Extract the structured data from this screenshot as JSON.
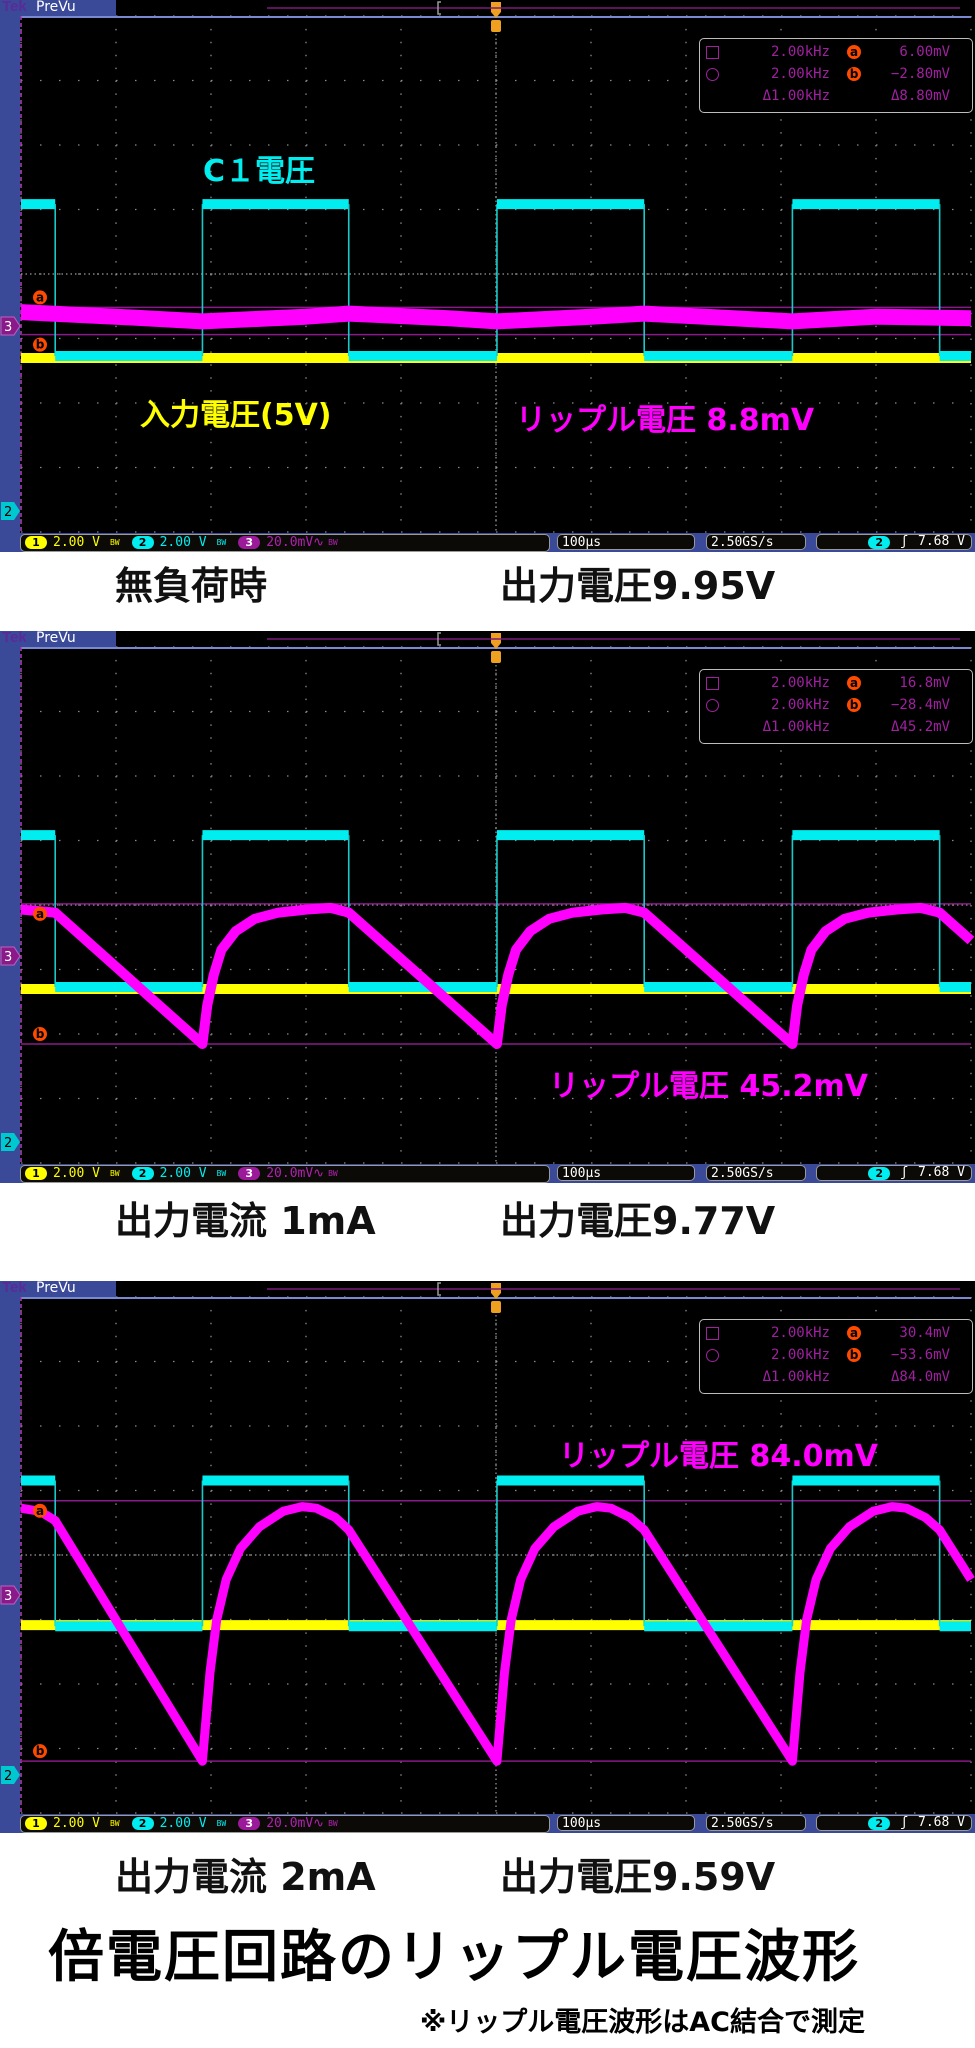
{
  "panels": [
    {
      "tek": "Tek",
      "prevu": "PreVu",
      "measure": {
        "f_a": "2.00kHz",
        "f_b": "2.00kHz",
        "df": "Δ1.00kHz",
        "v_a": "6.00mV",
        "v_b": "−2.80mV",
        "dv": "Δ8.80mV",
        "a": "a",
        "b": "b"
      },
      "status": {
        "ch1_num": "1",
        "ch1": "2.00 V",
        "ch2_num": "2",
        "ch2": "2.00 V",
        "ch3_num": "3",
        "ch3": "20.0mV∿",
        "bw": "BW",
        "timebase": "100µs",
        "sample_rate": "2.50GS/s",
        "trig_ch": "2",
        "trig_slope": "ʃ",
        "trig_level": "7.68 V"
      },
      "labels": {
        "c1": "C１電圧",
        "input": "入力電圧(5V)",
        "ripple": "リップル電圧 8.8mV"
      },
      "caption_left": "無負荷時",
      "caption_right": "出力電圧9.95V"
    },
    {
      "tek": "Tek",
      "prevu": "PreVu",
      "measure": {
        "f_a": "2.00kHz",
        "f_b": "2.00kHz",
        "df": "Δ1.00kHz",
        "v_a": "16.8mV",
        "v_b": "−28.4mV",
        "dv": "Δ45.2mV",
        "a": "a",
        "b": "b"
      },
      "status": {
        "ch1_num": "1",
        "ch1": "2.00 V",
        "ch2_num": "2",
        "ch2": "2.00 V",
        "ch3_num": "3",
        "ch3": "20.0mV∿",
        "bw": "BW",
        "timebase": "100µs",
        "sample_rate": "2.50GS/s",
        "trig_ch": "2",
        "trig_slope": "ʃ",
        "trig_level": "7.68 V"
      },
      "labels": {
        "ripple": "リップル電圧 45.2mV"
      },
      "caption_left": "出力電流 1mA",
      "caption_right": "出力電圧9.77V"
    },
    {
      "tek": "Tek",
      "prevu": "PreVu",
      "measure": {
        "f_a": "2.00kHz",
        "f_b": "2.00kHz",
        "df": "Δ1.00kHz",
        "v_a": "30.4mV",
        "v_b": "−53.6mV",
        "dv": "Δ84.0mV",
        "a": "a",
        "b": "b"
      },
      "status": {
        "ch1_num": "1",
        "ch1": "2.00 V",
        "ch2_num": "2",
        "ch2": "2.00 V",
        "ch3_num": "3",
        "ch3": "20.0mV∿",
        "bw": "BW",
        "timebase": "100µs",
        "sample_rate": "2.50GS/s",
        "trig_ch": "2",
        "trig_slope": "ʃ",
        "trig_level": "7.68 V"
      },
      "labels": {
        "ripple": "リップル電圧 84.0mV"
      },
      "caption_left": "出力電流 2mA",
      "caption_right": "出力電圧9.59V"
    }
  ],
  "title": "倍電圧回路のリップル電圧波形",
  "note": "※リップル電圧波形はAC結合で測定",
  "colors": {
    "ch1": "#ffff00",
    "ch2": "#00eef0",
    "ch3": "#ff00ff",
    "cursor": "#ff4a00",
    "frame": "#3b4a98"
  },
  "chart_data": [
    {
      "type": "line",
      "grid": true,
      "x_unit": "µs",
      "xlim": [
        0,
        1000
      ],
      "time_per_div_us": 100,
      "ch3_mV_per_div": 20,
      "ch1_V_per_div": 2,
      "ch2_V_per_div": 2,
      "cursors_mV": {
        "a": 6.0,
        "b": -2.8
      },
      "series": [
        {
          "channel": "1",
          "unit": "V",
          "points": [
            [
              0,
              5.0
            ],
            [
              1000,
              5.0
            ]
          ]
        },
        {
          "channel": "2",
          "unit": "V",
          "points": [
            [
              0,
              9.9
            ],
            [
              36,
              9.9
            ],
            [
              36,
              5.0
            ],
            [
              191,
              5.0
            ],
            [
              191,
              9.9
            ],
            [
              345,
              9.9
            ],
            [
              345,
              5.0
            ],
            [
              501,
              5.0
            ],
            [
              501,
              9.9
            ],
            [
              656,
              9.9
            ],
            [
              656,
              5.0
            ],
            [
              812,
              5.0
            ],
            [
              812,
              9.9
            ],
            [
              967,
              9.9
            ],
            [
              967,
              5.0
            ],
            [
              1000,
              5.0
            ]
          ]
        },
        {
          "channel": "3",
          "unit": "mV",
          "points": [
            [
              0,
              4.5
            ],
            [
              100,
              3
            ],
            [
              191,
              1.5
            ],
            [
              300,
              3
            ],
            [
              345,
              4
            ],
            [
              450,
              2.5
            ],
            [
              501,
              1.5
            ],
            [
              600,
              3
            ],
            [
              656,
              4
            ],
            [
              750,
              2.5
            ],
            [
              812,
              1.5
            ],
            [
              900,
              3
            ],
            [
              1000,
              2.5
            ]
          ]
        }
      ]
    },
    {
      "type": "line",
      "grid": true,
      "x_unit": "µs",
      "xlim": [
        0,
        1000
      ],
      "time_per_div_us": 100,
      "ch3_mV_per_div": 20,
      "ch1_V_per_div": 2,
      "ch2_V_per_div": 2,
      "cursors_mV": {
        "a": 16.8,
        "b": -28.4
      },
      "series": [
        {
          "channel": "1",
          "unit": "V",
          "points": [
            [
              0,
              5.0
            ],
            [
              1000,
              5.0
            ]
          ]
        },
        {
          "channel": "2",
          "unit": "V",
          "points": [
            [
              0,
              9.9
            ],
            [
              36,
              9.9
            ],
            [
              36,
              5.0
            ],
            [
              191,
              5.0
            ],
            [
              191,
              9.9
            ],
            [
              345,
              9.9
            ],
            [
              345,
              5.0
            ],
            [
              501,
              5.0
            ],
            [
              501,
              9.9
            ],
            [
              656,
              9.9
            ],
            [
              656,
              5.0
            ],
            [
              812,
              5.0
            ],
            [
              812,
              9.9
            ],
            [
              967,
              9.9
            ],
            [
              967,
              5.0
            ],
            [
              1000,
              5.0
            ]
          ]
        },
        {
          "channel": "3",
          "unit": "mV",
          "points": [
            [
              0,
              15
            ],
            [
              36,
              14
            ],
            [
              191,
              -28.4
            ],
            [
              196,
              -16
            ],
            [
              203,
              -6
            ],
            [
              211,
              2
            ],
            [
              226,
              8
            ],
            [
              246,
              12
            ],
            [
              271,
              14
            ],
            [
              301,
              15
            ],
            [
              326,
              15.5
            ],
            [
              345,
              14
            ],
            [
              501,
              -28.4
            ],
            [
              506,
              -16
            ],
            [
              513,
              -6
            ],
            [
              521,
              2
            ],
            [
              536,
              8
            ],
            [
              556,
              12
            ],
            [
              581,
              14
            ],
            [
              611,
              15
            ],
            [
              636,
              15.5
            ],
            [
              656,
              14
            ],
            [
              812,
              -28.4
            ],
            [
              817,
              -16
            ],
            [
              824,
              -6
            ],
            [
              832,
              2
            ],
            [
              847,
              8
            ],
            [
              867,
              12
            ],
            [
              892,
              14
            ],
            [
              922,
              15
            ],
            [
              947,
              15.5
            ],
            [
              967,
              14
            ],
            [
              1000,
              5
            ]
          ]
        }
      ]
    },
    {
      "type": "line",
      "grid": true,
      "x_unit": "µs",
      "xlim": [
        0,
        1000
      ],
      "time_per_div_us": 100,
      "ch3_mV_per_div": 20,
      "ch1_V_per_div": 2,
      "ch2_V_per_div": 2,
      "cursors_mV": {
        "a": 30.4,
        "b": -53.6
      },
      "series": [
        {
          "channel": "1",
          "unit": "V",
          "points": [
            [
              0,
              4.9
            ],
            [
              1000,
              4.9
            ]
          ]
        },
        {
          "channel": "2",
          "unit": "V",
          "points": [
            [
              0,
              9.5
            ],
            [
              36,
              9.5
            ],
            [
              36,
              4.8
            ],
            [
              191,
              4.8
            ],
            [
              191,
              9.5
            ],
            [
              345,
              9.5
            ],
            [
              345,
              4.8
            ],
            [
              501,
              4.8
            ],
            [
              501,
              9.5
            ],
            [
              656,
              9.5
            ],
            [
              656,
              4.8
            ],
            [
              812,
              4.8
            ],
            [
              812,
              9.5
            ],
            [
              967,
              9.5
            ],
            [
              967,
              4.8
            ],
            [
              1000,
              4.8
            ]
          ]
        },
        {
          "channel": "3",
          "unit": "mV",
          "points": [
            [
              0,
              28
            ],
            [
              20,
              27
            ],
            [
              36,
              24
            ],
            [
              191,
              -53.6
            ],
            [
              199,
              -25
            ],
            [
              206,
              -8
            ],
            [
              216,
              5
            ],
            [
              231,
              15
            ],
            [
              251,
              22
            ],
            [
              276,
              27
            ],
            [
              296,
              28.5
            ],
            [
              311,
              28
            ],
            [
              331,
              25
            ],
            [
              345,
              21
            ],
            [
              501,
              -53.6
            ],
            [
              509,
              -25
            ],
            [
              516,
              -8
            ],
            [
              526,
              5
            ],
            [
              541,
              15
            ],
            [
              561,
              22
            ],
            [
              586,
              27
            ],
            [
              606,
              28.5
            ],
            [
              621,
              28
            ],
            [
              641,
              25
            ],
            [
              656,
              21
            ],
            [
              812,
              -53.6
            ],
            [
              820,
              -25
            ],
            [
              827,
              -8
            ],
            [
              837,
              5
            ],
            [
              852,
              15
            ],
            [
              872,
              22
            ],
            [
              897,
              27
            ],
            [
              917,
              28.5
            ],
            [
              932,
              28
            ],
            [
              952,
              25
            ],
            [
              967,
              21
            ],
            [
              1000,
              5
            ]
          ]
        }
      ]
    }
  ]
}
